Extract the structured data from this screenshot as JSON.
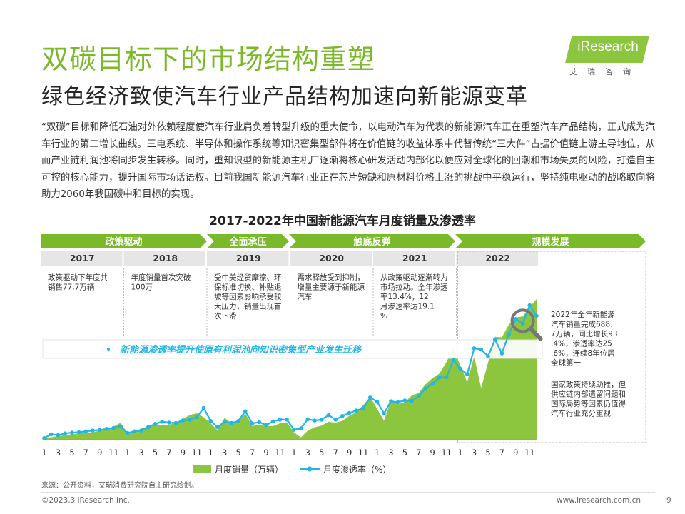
{
  "header": {
    "title": "双碳目标下的市场结构重塑",
    "subtitle": "绿色经济致使汽车行业产品结构加速向新能源变革"
  },
  "logo": {
    "brand": "iResearch",
    "cn": "艾瑞咨询"
  },
  "body_text": "“双碳”目标和降低石油对外依赖程度使汽车行业肩负着转型升级的重大使命，以电动汽车为代表的新能源汽车正在重塑汽车产品结构，正式成为汽车行业的第二增长曲线。三电系统、半导体和操作系统等知识密集型部件将在价值链的收益体系中代替传统“三大件”占据价值链上游主导地位，从而产业链利润池将同步发生转移。同时，重知识型的新能源主机厂逐渐将核心研发活动内部化以便应对全球化的回潮和市场失灵的风险，打造自主可控的核心能力，提升国际市场话语权。目前我国新能源汽车行业正在芯片短缺和原材料价格上涨的挑战中平稳运行，坚持纯电驱动的战略取向将助力2060年我国碳中和目标的实现。",
  "chart_title": "2017-2022年中国新能源汽车月度销量及渗透率",
  "phases": [
    "政策驱动",
    "全面承压",
    "触底反弹",
    "规模发展"
  ],
  "years": [
    "2017",
    "2018",
    "2019",
    "2020",
    "2021",
    "2022"
  ],
  "year_notes": [
    "政策驱动下年度共销售77.7万辆",
    "年度销量首次突破100万",
    "受中美经贸摩擦、环保标准切换、补贴退坡等因素影响承受较大压力，销量出现首次下滑",
    "需求释放受到抑制，增量主要源于新能源汽车",
    "从政策驱动逐渐转为市场拉动。全年渗透率13.4%，12月渗透率达19.1%"
  ],
  "note_2022_a": "2022年全年新能源汽车销量完成688.7万辆，同比增长93.4%，渗透率达25.6%，连续8年位居全球第一",
  "note_2022_b": "国家政策持续助推，但供应链内部遗留问题和国际局势等因素仍值得汽车行业充分重视",
  "banner": "新能源渗透率提升使原有利润池向知识密集型产业发生迁移",
  "source": "来源：公开资料，艾瑞消费研究院自主研究绘制。",
  "copyright": "©2023.3 iResearch Inc.",
  "website": "www.iresearch.com.cn",
  "page_number": "9",
  "colors": {
    "accent": "#7ab929",
    "area": "#8cc63f",
    "line": "#22b5e6",
    "phase_bg": "#7ab929",
    "year_bg": "#e6e6e6"
  },
  "chart_data": {
    "type": "area",
    "x_ticks": [
      "1",
      "3",
      "5",
      "7",
      "9",
      "11",
      "1",
      "3",
      "5",
      "7",
      "9",
      "11",
      "1",
      "3",
      "5",
      "7",
      "9",
      "11",
      "1",
      "3",
      "5",
      "7",
      "9",
      "11",
      "1",
      "3",
      "5",
      "7",
      "9",
      "11",
      "1",
      "3",
      "5",
      "7",
      "9",
      "11"
    ],
    "series": [
      {
        "name": "月度销量（万辆）",
        "type": "area",
        "values": [
          0.7,
          1.4,
          2.1,
          2.6,
          3.2,
          3.6,
          4.0,
          4.2,
          5.2,
          6.2,
          7.6,
          9.8,
          3.8,
          3.7,
          6.5,
          7.6,
          9.1,
          8.4,
          8.5,
          10.1,
          12.1,
          14.3,
          15.3,
          13.0,
          9.6,
          5.4,
          12.6,
          9.7,
          10.4,
          15.2,
          8.0,
          8.5,
          8.0,
          7.9,
          9.5,
          10.1,
          4.3,
          1.3,
          5.2,
          7.2,
          8.2,
          10.4,
          9.8,
          10.9,
          13.8,
          16.0,
          20.0,
          24.8,
          17.9,
          11.0,
          22.6,
          20.6,
          21.7,
          25.6,
          27.1,
          32.1,
          35.7,
          38.3,
          45.0,
          53.1,
          43.1,
          33.4,
          48.4,
          29.9,
          44.7,
          59.6,
          59.3,
          66.6,
          70.8,
          71.4,
          76.8,
          81.4
        ]
      },
      {
        "name": "月度渗透率（%）",
        "type": "line",
        "values": [
          0.4,
          1.3,
          1.1,
          1.5,
          1.7,
          1.8,
          2.0,
          2.2,
          2.3,
          2.6,
          2.8,
          3.2,
          1.6,
          2.0,
          2.2,
          3.0,
          3.8,
          4.3,
          4.1,
          4.0,
          4.6,
          4.8,
          5.4,
          7.6,
          4.5,
          3.0,
          4.3,
          4.0,
          4.5,
          6.8,
          3.9,
          4.2,
          3.5,
          4.4,
          4.8,
          4.8,
          2.4,
          2.7,
          4.9,
          4.6,
          4.8,
          5.9,
          4.8,
          5.7,
          6.4,
          7.0,
          7.5,
          10.1,
          9.1,
          6.3,
          9.2,
          9.0,
          9.4,
          9.3,
          10.4,
          12.3,
          13.4,
          14.9,
          15.0,
          19.1,
          17.0,
          15.7,
          21.9,
          21.6,
          20.0,
          24.0,
          20.7,
          25.3,
          28.9,
          27.8,
          32.2,
          29.7
        ]
      }
    ],
    "legend": [
      "月度销量（万辆）",
      "月度渗透率（%）"
    ],
    "legend_position": "bottom"
  }
}
